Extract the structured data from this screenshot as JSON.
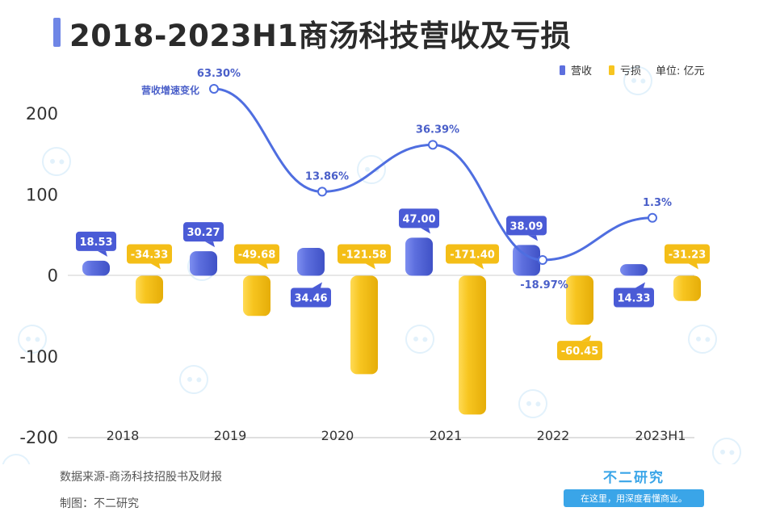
{
  "title": "2018-2023H1商汤科技营收及亏损",
  "legend": {
    "revenue_label": "营收",
    "loss_label": "亏损",
    "unit_label": "单位: 亿元"
  },
  "growth_label": "营收增速变化",
  "footer": {
    "source": "数据来源-商汤科技招股书及财报",
    "maker": "制图：不二研究"
  },
  "brand": {
    "name": "不二研究",
    "slogan": "在这里，用深度看懂商业。",
    "watermark": "不二研究"
  },
  "colors": {
    "revenue": "#5d6fde",
    "loss": "#f7c520",
    "growth_line": "#4f6ee0",
    "revenue_label_bg": "#4a5bd6",
    "loss_label_bg": "#f4be17",
    "title_accent": "#6f86e6",
    "brand": "#3aa5e8"
  },
  "chart_data": {
    "type": "bar",
    "categories": [
      "2018",
      "2019",
      "2020",
      "2021",
      "2022",
      "2023H1"
    ],
    "ylim": [
      -200,
      200
    ],
    "yticks": [
      200,
      100,
      0,
      -100,
      -200
    ],
    "series": [
      {
        "name": "营收",
        "values": [
          18.53,
          30.27,
          34.46,
          47.0,
          38.09,
          14.33
        ],
        "labels": [
          "18.53",
          "30.27",
          "34.46",
          "47.00",
          "38.09",
          "14.33"
        ]
      },
      {
        "name": "亏损",
        "values": [
          -34.33,
          -49.68,
          -121.58,
          -171.4,
          -60.45,
          -31.23
        ],
        "labels": [
          "-34.33",
          "-49.68",
          "-121.58",
          "-171.40",
          "-60.45",
          "-31.23"
        ]
      }
    ],
    "growth": {
      "name": "营收增速变化",
      "values": [
        63.3,
        13.86,
        36.39,
        -18.97,
        1.3
      ],
      "labels": [
        "63.30%",
        "13.86%",
        "36.39%",
        "-18.97%",
        "1.3%"
      ],
      "categories": [
        "2019",
        "2020",
        "2021",
        "2022",
        "2023H1"
      ]
    }
  }
}
